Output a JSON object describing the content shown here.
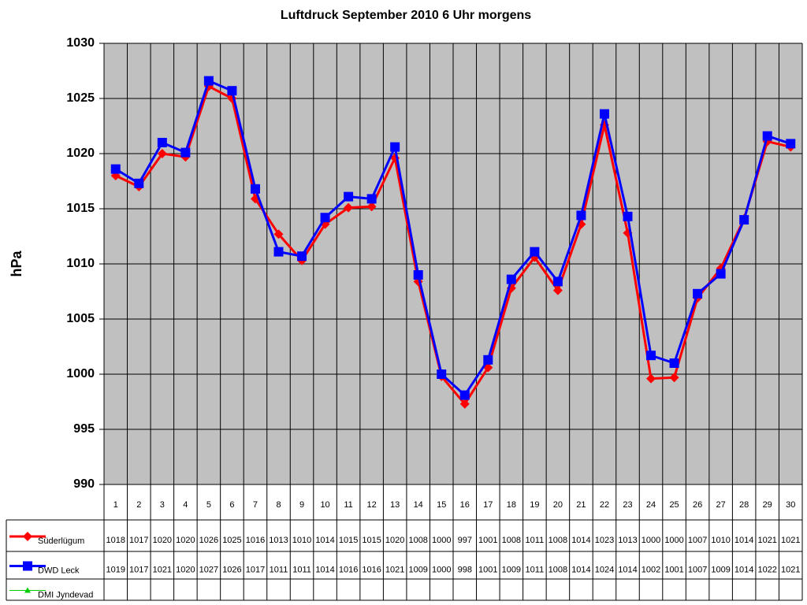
{
  "chart_data": {
    "type": "line",
    "title": "Luftdruck September 2010 6 Uhr morgens",
    "y_label": "hPa",
    "categories": [
      "1",
      "2",
      "3",
      "4",
      "5",
      "6",
      "7",
      "8",
      "9",
      "10",
      "11",
      "12",
      "13",
      "14",
      "15",
      "16",
      "17",
      "18",
      "19",
      "20",
      "21",
      "22",
      "23",
      "24",
      "25",
      "26",
      "27",
      "28",
      "29",
      "30"
    ],
    "ylim": [
      990,
      1030
    ],
    "yticks": [
      990,
      995,
      1000,
      1005,
      1010,
      1015,
      1020,
      1025,
      1030
    ],
    "grid": true,
    "series": [
      {
        "name": "Süderlügum",
        "color": "#ff0000",
        "marker": "diamond",
        "values": [
          1018.0,
          1017.0,
          1020.0,
          1019.7,
          1026.1,
          1025.0,
          1015.9,
          1012.7,
          1010.3,
          1013.6,
          1015.1,
          1015.2,
          1019.6,
          1008.4,
          999.8,
          997.3,
          1000.6,
          1007.8,
          1010.6,
          1007.6,
          1013.6,
          1022.6,
          1012.8,
          999.6,
          999.7,
          1006.9,
          1009.6,
          1014.1,
          1021.1,
          1020.6
        ],
        "value_labels": [
          "1018",
          "1017",
          "1020",
          "1020",
          "1026",
          "1025",
          "1016",
          "1013",
          "1010",
          "1014",
          "1015",
          "1015",
          "1020",
          "1008",
          "1000",
          "997",
          "1001",
          "1008",
          "1011",
          "1008",
          "1014",
          "1023",
          "1013",
          "1000",
          "1000",
          "1007",
          "1010",
          "1014",
          "1021",
          "1021"
        ]
      },
      {
        "name": "DWD Leck",
        "color": "#0000ff",
        "marker": "square",
        "values": [
          1018.6,
          1017.3,
          1021.0,
          1020.1,
          1026.6,
          1025.7,
          1016.8,
          1011.1,
          1010.7,
          1014.2,
          1016.1,
          1015.9,
          1020.6,
          1009.0,
          1000.0,
          998.1,
          1001.3,
          1008.6,
          1011.1,
          1008.4,
          1014.4,
          1023.6,
          1014.3,
          1001.7,
          1001.0,
          1007.3,
          1009.1,
          1014.0,
          1021.6,
          1020.9
        ],
        "value_labels": [
          "1019",
          "1017",
          "1021",
          "1020",
          "1027",
          "1026",
          "1017",
          "1011",
          "1011",
          "1014",
          "1016",
          "1016",
          "1021",
          "1009",
          "1000",
          "998",
          "1001",
          "1009",
          "1011",
          "1008",
          "1014",
          "1024",
          "1014",
          "1002",
          "1001",
          "1007",
          "1009",
          "1014",
          "1022",
          "1021"
        ]
      },
      {
        "name": "DMI Jyndevad",
        "color": "#00cc00",
        "marker": "triangle",
        "values": [
          null,
          null,
          null,
          null,
          null,
          null,
          null,
          null,
          null,
          null,
          null,
          null,
          null,
          null,
          null,
          null,
          null,
          null,
          null,
          null,
          null,
          null,
          null,
          null,
          null,
          null,
          null,
          null,
          null,
          null
        ]
      }
    ]
  }
}
